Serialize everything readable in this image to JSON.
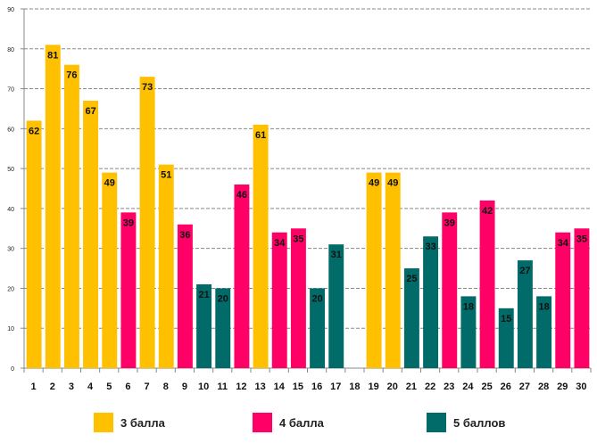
{
  "chart_data": {
    "type": "bar",
    "title": "",
    "xlabel": "",
    "ylabel": "",
    "ylim": [
      0,
      90
    ],
    "yticks": [
      0,
      10,
      20,
      30,
      40,
      50,
      60,
      70,
      80,
      90
    ],
    "grid": true,
    "legend_placement": "bottom",
    "categories": [
      "1",
      "2",
      "3",
      "4",
      "5",
      "6",
      "7",
      "8",
      "9",
      "10",
      "11",
      "12",
      "13",
      "14",
      "15",
      "16",
      "17",
      "18",
      "19",
      "20",
      "21",
      "22",
      "23",
      "24",
      "25",
      "26",
      "27",
      "28",
      "29",
      "30"
    ],
    "series": [
      {
        "name": "3 балла",
        "color": "#FFC000",
        "values": [
          62,
          81,
          76,
          67,
          49,
          null,
          73,
          51,
          null,
          null,
          null,
          null,
          61,
          null,
          null,
          null,
          null,
          null,
          49,
          49,
          null,
          null,
          null,
          null,
          null,
          null,
          null,
          null,
          null,
          null
        ]
      },
      {
        "name": "4 балла",
        "color": "#FF0066",
        "values": [
          null,
          null,
          null,
          null,
          null,
          39,
          null,
          null,
          36,
          null,
          null,
          46,
          null,
          34,
          35,
          null,
          null,
          null,
          null,
          null,
          null,
          null,
          39,
          null,
          42,
          null,
          null,
          null,
          34,
          35
        ]
      },
      {
        "name": "5 баллов",
        "color": "#006B68",
        "values": [
          null,
          null,
          null,
          null,
          null,
          null,
          null,
          null,
          null,
          21,
          20,
          null,
          null,
          null,
          null,
          20,
          31,
          null,
          null,
          null,
          25,
          33,
          null,
          18,
          null,
          15,
          27,
          18,
          null,
          null
        ]
      }
    ]
  }
}
